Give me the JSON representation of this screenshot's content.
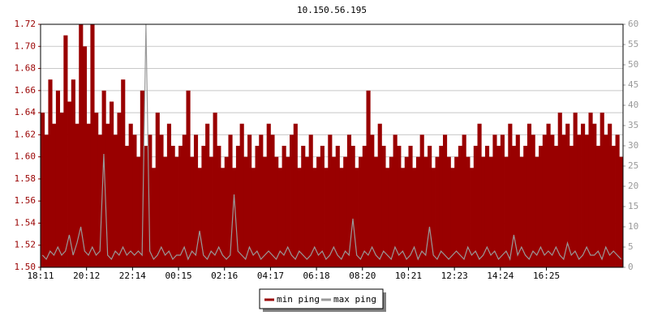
{
  "chart_data": {
    "type": "bar",
    "title": "10.150.56.195",
    "categories": [
      "18:11",
      null,
      null,
      null,
      null,
      null,
      null,
      null,
      null,
      null,
      null,
      null,
      "20:12",
      null,
      null,
      null,
      null,
      null,
      null,
      null,
      null,
      null,
      null,
      null,
      "22:14",
      null,
      null,
      null,
      null,
      null,
      null,
      null,
      null,
      null,
      null,
      null,
      "00:15",
      null,
      null,
      null,
      null,
      null,
      null,
      null,
      null,
      null,
      null,
      null,
      "02:16",
      null,
      null,
      null,
      null,
      null,
      null,
      null,
      null,
      null,
      null,
      null,
      "04:17",
      null,
      null,
      null,
      null,
      null,
      null,
      null,
      null,
      null,
      null,
      null,
      "06:18",
      null,
      null,
      null,
      null,
      null,
      null,
      null,
      null,
      null,
      null,
      null,
      "08:20",
      null,
      null,
      null,
      null,
      null,
      null,
      null,
      null,
      null,
      null,
      null,
      "10:21",
      null,
      null,
      null,
      null,
      null,
      null,
      null,
      null,
      null,
      null,
      null,
      "12:23",
      null,
      null,
      null,
      null,
      null,
      null,
      null,
      null,
      null,
      null,
      null,
      "14:24",
      null,
      null,
      null,
      null,
      null,
      null,
      null,
      null,
      null,
      null,
      null,
      "16:25",
      null,
      null,
      null,
      null,
      null,
      null,
      null,
      null,
      null,
      null,
      null,
      null,
      null,
      null,
      null,
      null,
      null,
      null,
      null
    ],
    "series": [
      {
        "name": "min ping",
        "color": "#990000",
        "axis": "y",
        "values": [
          1.64,
          1.62,
          1.67,
          1.63,
          1.66,
          1.64,
          1.71,
          1.65,
          1.67,
          1.63,
          1.72,
          1.7,
          1.63,
          1.72,
          1.64,
          1.62,
          1.66,
          1.63,
          1.65,
          1.62,
          1.64,
          1.67,
          1.61,
          1.63,
          1.62,
          1.6,
          1.66,
          1.61,
          1.62,
          1.59,
          1.64,
          1.62,
          1.6,
          1.63,
          1.61,
          1.6,
          1.61,
          1.62,
          1.66,
          1.6,
          1.62,
          1.59,
          1.61,
          1.63,
          1.6,
          1.64,
          1.61,
          1.59,
          1.6,
          1.62,
          1.59,
          1.61,
          1.63,
          1.6,
          1.62,
          1.59,
          1.61,
          1.62,
          1.6,
          1.63,
          1.62,
          1.6,
          1.59,
          1.61,
          1.6,
          1.62,
          1.63,
          1.59,
          1.61,
          1.6,
          1.62,
          1.59,
          1.6,
          1.61,
          1.59,
          1.62,
          1.6,
          1.61,
          1.59,
          1.6,
          1.62,
          1.61,
          1.59,
          1.6,
          1.61,
          1.66,
          1.62,
          1.6,
          1.63,
          1.61,
          1.59,
          1.6,
          1.62,
          1.61,
          1.59,
          1.6,
          1.61,
          1.59,
          1.6,
          1.62,
          1.6,
          1.61,
          1.59,
          1.6,
          1.61,
          1.62,
          1.6,
          1.59,
          1.6,
          1.61,
          1.62,
          1.6,
          1.59,
          1.61,
          1.63,
          1.6,
          1.61,
          1.6,
          1.62,
          1.61,
          1.62,
          1.6,
          1.63,
          1.61,
          1.62,
          1.6,
          1.61,
          1.63,
          1.62,
          1.6,
          1.61,
          1.62,
          1.63,
          1.62,
          1.61,
          1.64,
          1.62,
          1.63,
          1.61,
          1.64,
          1.62,
          1.63,
          1.62,
          1.64,
          1.63,
          1.61,
          1.64,
          1.62,
          1.63,
          1.61,
          1.62,
          1.6
        ]
      },
      {
        "name": "max ping",
        "color": "#999999",
        "axis": "y2",
        "type": "line",
        "values": [
          3,
          2,
          4,
          3,
          5,
          3,
          4,
          8,
          3,
          6,
          10,
          4,
          3,
          5,
          3,
          4,
          28,
          3,
          2,
          4,
          3,
          5,
          3,
          4,
          3,
          4,
          3,
          60,
          4,
          2,
          3,
          5,
          3,
          4,
          2,
          3,
          3,
          5,
          2,
          4,
          3,
          9,
          3,
          2,
          4,
          3,
          5,
          3,
          2,
          3,
          18,
          4,
          3,
          2,
          5,
          3,
          4,
          2,
          3,
          4,
          3,
          2,
          4,
          3,
          5,
          3,
          2,
          4,
          3,
          2,
          3,
          5,
          3,
          4,
          2,
          3,
          5,
          3,
          2,
          4,
          3,
          12,
          3,
          2,
          4,
          3,
          5,
          3,
          2,
          4,
          3,
          2,
          5,
          3,
          4,
          2,
          3,
          5,
          2,
          4,
          3,
          10,
          3,
          2,
          4,
          3,
          2,
          3,
          4,
          3,
          2,
          5,
          3,
          4,
          2,
          3,
          5,
          3,
          4,
          2,
          3,
          4,
          2,
          8,
          3,
          5,
          3,
          2,
          4,
          3,
          5,
          3,
          4,
          3,
          5,
          3,
          2,
          6,
          3,
          4,
          2,
          3,
          5,
          3,
          3,
          4,
          2,
          5,
          3,
          4,
          3,
          2
        ]
      }
    ],
    "ylim": [
      1.5,
      1.72
    ],
    "yticks": [
      {
        "value": 1.5,
        "label": "1.50"
      },
      1.52,
      1.54,
      1.56,
      1.58,
      {
        "value": 1.6,
        "label": "1.60"
      },
      1.62,
      1.64,
      1.66,
      1.68,
      {
        "value": 1.7,
        "label": "1.70"
      },
      1.72
    ],
    "y2lim": [
      0,
      60
    ],
    "y2ticks": [
      0,
      5,
      10,
      15,
      20,
      25,
      30,
      35,
      40,
      45,
      50,
      55,
      60
    ],
    "grid": true
  }
}
